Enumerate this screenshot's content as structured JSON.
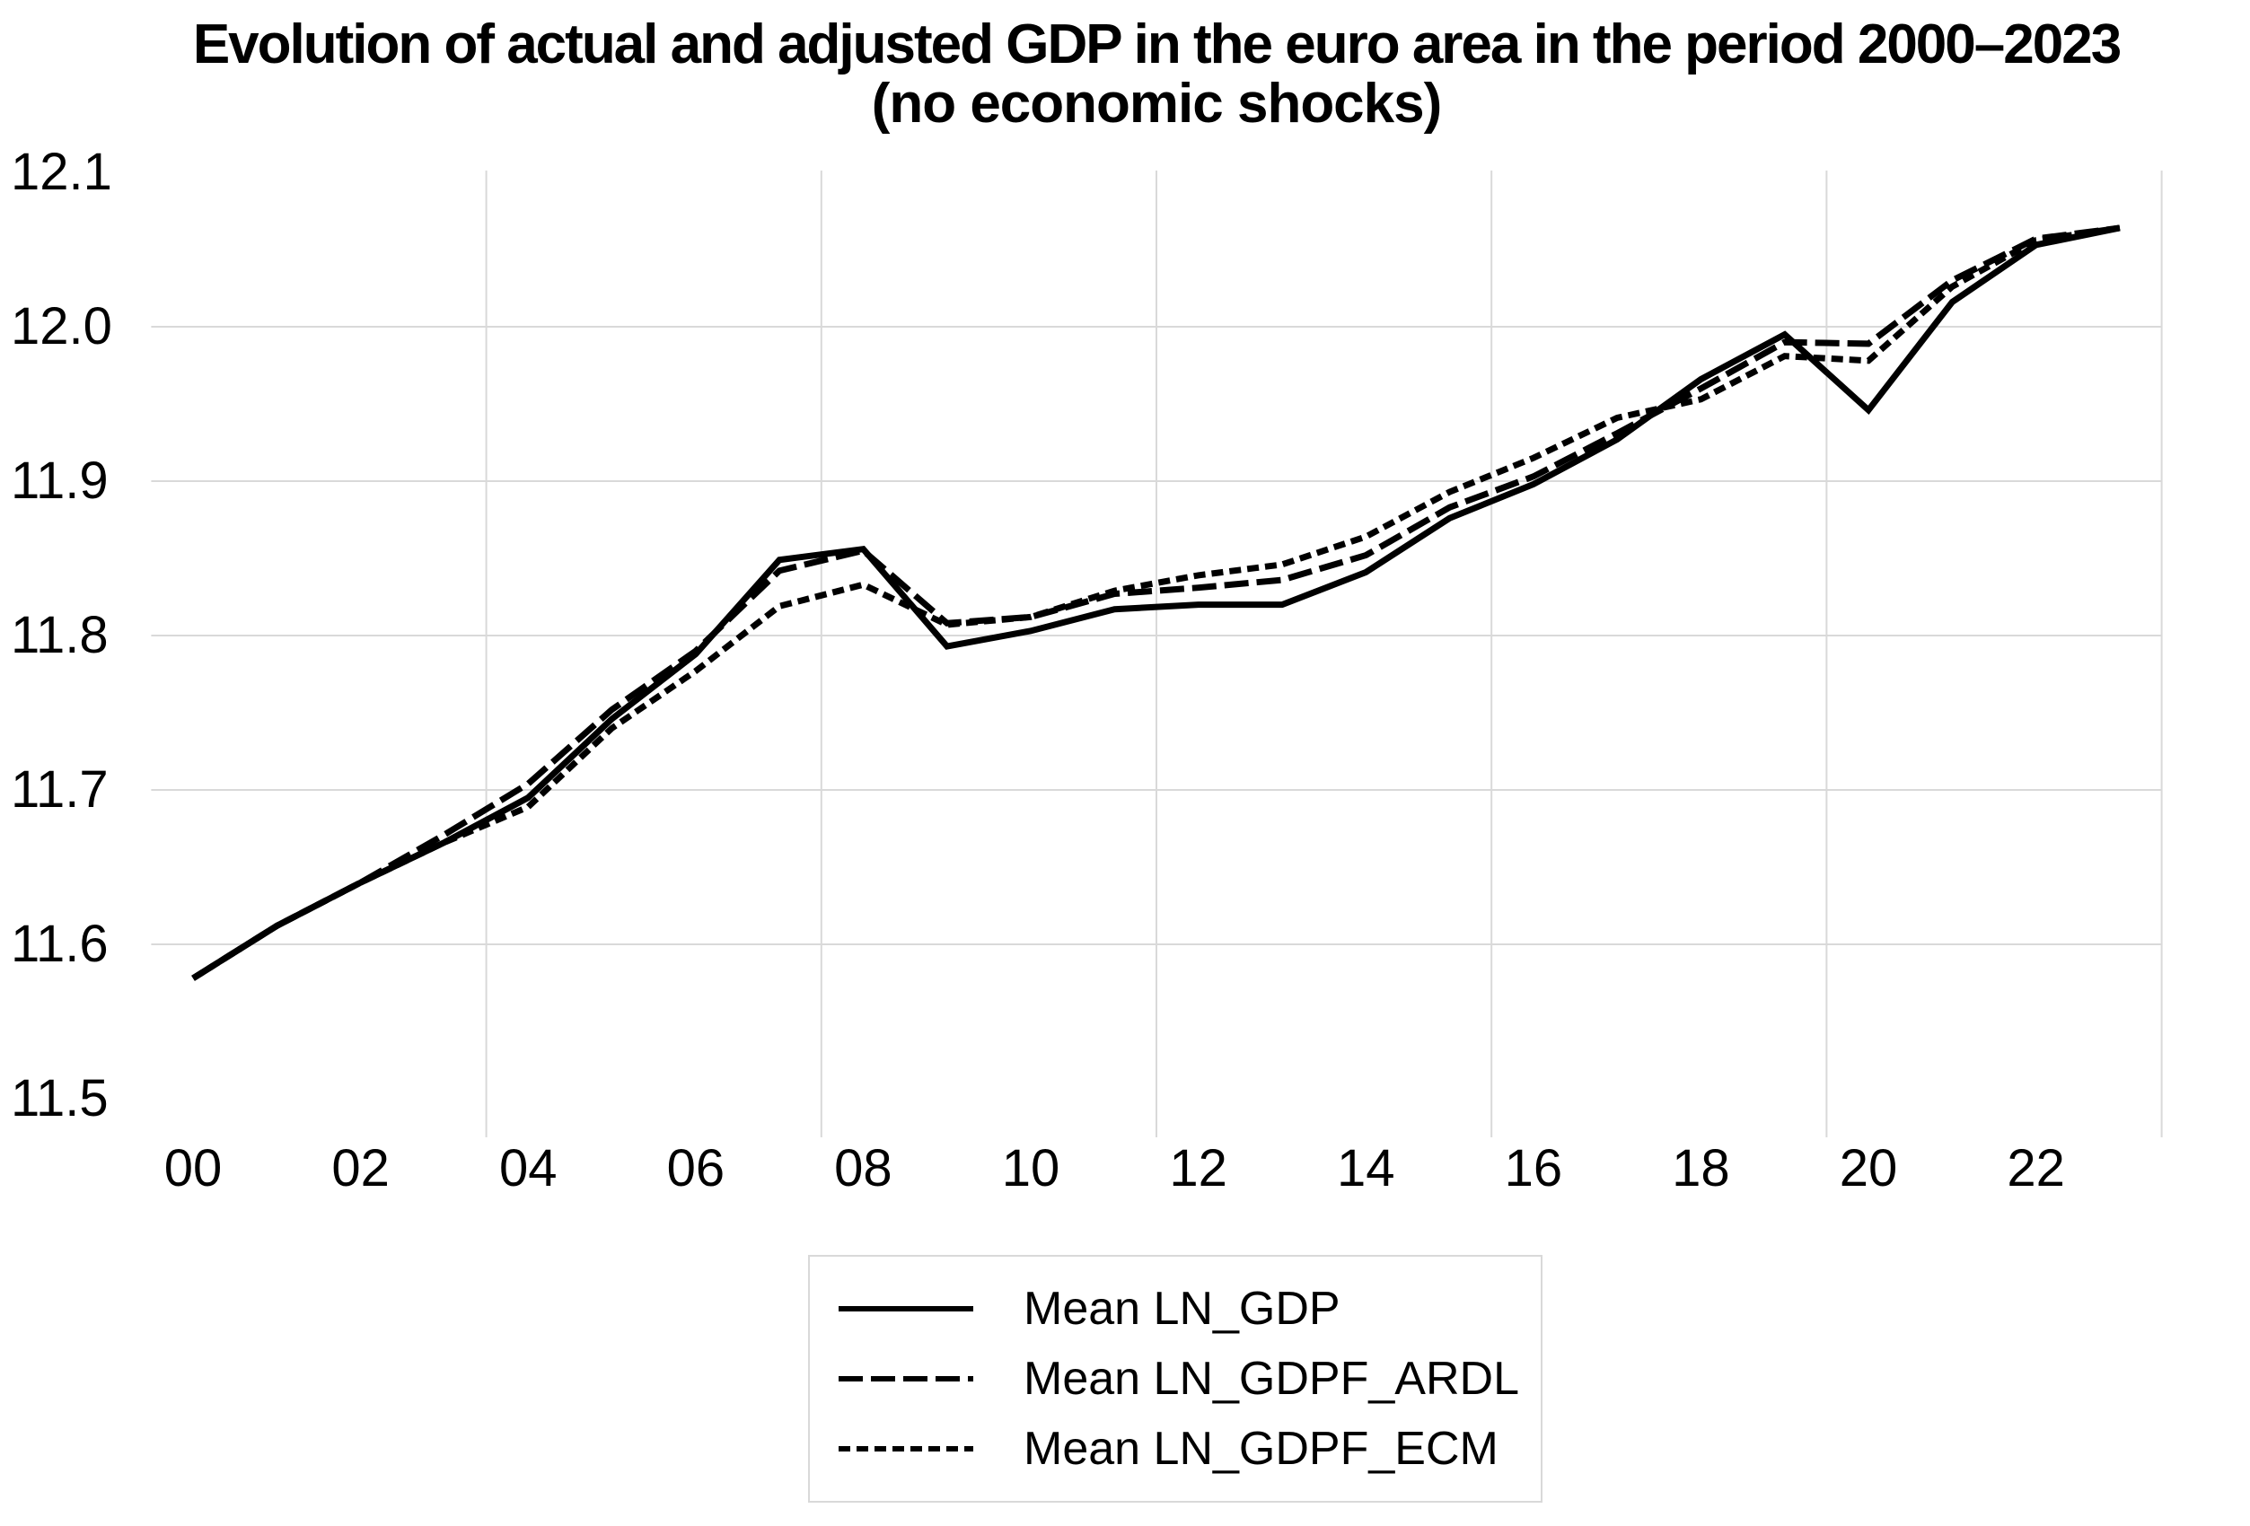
{
  "chart_data": {
    "type": "line",
    "title": "Evolution of actual and adjusted GDP in the euro area in the period 2000–2023",
    "subtitle": "(no economic shocks)",
    "x_years": [
      2000,
      2001,
      2002,
      2003,
      2004,
      2005,
      2006,
      2007,
      2008,
      2009,
      2010,
      2011,
      2012,
      2013,
      2014,
      2015,
      2016,
      2017,
      2018,
      2019,
      2020,
      2021,
      2022,
      2023
    ],
    "x_tick_labels": [
      "00",
      "02",
      "04",
      "06",
      "08",
      "10",
      "12",
      "14",
      "16",
      "18",
      "20",
      "22"
    ],
    "y_ticks": [
      12.1,
      12.0,
      11.9,
      11.8,
      11.7,
      11.6,
      11.5
    ],
    "ylim": [
      11.5,
      12.1
    ],
    "grid": {
      "horizontal_at": [
        11.6,
        11.7,
        11.8,
        11.9,
        12.0
      ],
      "vertical_every_categories": 4
    },
    "grid_color": "#d9d9d9",
    "legend_position": "bottom",
    "series": [
      {
        "name": "Mean LN_GDP",
        "style": "solid",
        "color": "#000000",
        "values": [
          11.578,
          11.612,
          11.64,
          11.666,
          11.695,
          11.746,
          11.788,
          11.849,
          11.856,
          11.793,
          11.803,
          11.817,
          11.82,
          11.82,
          11.841,
          11.876,
          11.898,
          11.927,
          11.966,
          11.995,
          11.946,
          12.016,
          12.053,
          12.064
        ]
      },
      {
        "name": "Mean LN_GDPF_ARDL",
        "style": "long-dash",
        "color": "#000000",
        "values": [
          11.578,
          11.612,
          11.64,
          11.671,
          11.704,
          11.752,
          11.79,
          11.842,
          11.855,
          11.808,
          11.812,
          11.827,
          11.831,
          11.836,
          11.852,
          11.883,
          11.903,
          11.931,
          11.96,
          11.99,
          11.989,
          12.03,
          12.057,
          12.064
        ]
      },
      {
        "name": "Mean LN_GDPF_ECM",
        "style": "short-dash",
        "color": "#000000",
        "values": [
          11.578,
          11.612,
          11.64,
          11.666,
          11.689,
          11.74,
          11.777,
          11.819,
          11.833,
          11.807,
          11.812,
          11.829,
          11.839,
          11.846,
          11.864,
          11.893,
          11.915,
          11.941,
          11.953,
          11.981,
          11.978,
          12.026,
          12.056,
          12.064
        ]
      }
    ]
  }
}
